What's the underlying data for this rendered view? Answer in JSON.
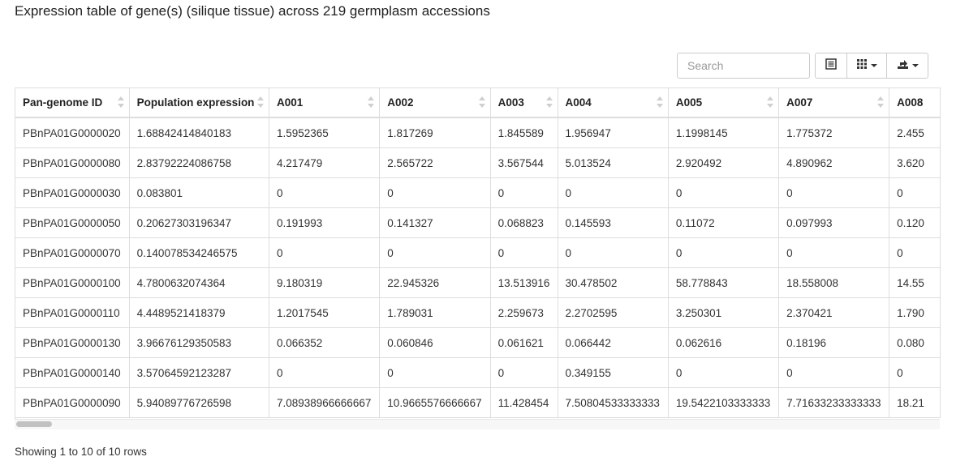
{
  "page": {
    "title": "Expression table of gene(s) (silique tissue) across 219 germplasm accessions"
  },
  "toolbar": {
    "search_placeholder": "Search",
    "search_value": "",
    "buttons": [
      {
        "icon": "list-view-icon"
      },
      {
        "icon": "columns-grid-icon",
        "dropdown": true
      },
      {
        "icon": "export-icon",
        "dropdown": true
      }
    ]
  },
  "table": {
    "columns": [
      "Pan-genome ID",
      "Population expression",
      "A001",
      "A002",
      "A003",
      "A004",
      "A005",
      "A007",
      "A008"
    ],
    "rows": [
      [
        "PBnPA01G0000020",
        "1.68842414840183",
        "1.5952365",
        "1.817269",
        "1.845589",
        "1.956947",
        "1.1998145",
        "1.775372",
        "2.455"
      ],
      [
        "PBnPA01G0000080",
        "2.83792224086758",
        "4.217479",
        "2.565722",
        "3.567544",
        "5.013524",
        "2.920492",
        "4.890962",
        "3.620"
      ],
      [
        "PBnPA01G0000030",
        "0.083801",
        "0",
        "0",
        "0",
        "0",
        "0",
        "0",
        "0"
      ],
      [
        "PBnPA01G0000050",
        "0.20627303196347",
        "0.191993",
        "0.141327",
        "0.068823",
        "0.145593",
        "0.11072",
        "0.097993",
        "0.120"
      ],
      [
        "PBnPA01G0000070",
        "0.140078534246575",
        "0",
        "0",
        "0",
        "0",
        "0",
        "0",
        "0"
      ],
      [
        "PBnPA01G0000100",
        "4.7800632074364",
        "9.180319",
        "22.945326",
        "13.513916",
        "30.478502",
        "58.778843",
        "18.558008",
        "14.55"
      ],
      [
        "PBnPA01G0000110",
        "4.4489521418379",
        "1.2017545",
        "1.789031",
        "2.259673",
        "2.2702595",
        "3.250301",
        "2.370421",
        "1.790"
      ],
      [
        "PBnPA01G0000130",
        "3.96676129350583",
        "0.066352",
        "0.060846",
        "0.061621",
        "0.066442",
        "0.062616",
        "0.18196",
        "0.080"
      ],
      [
        "PBnPA01G0000140",
        "3.57064592123287",
        "0",
        "0",
        "0",
        "0.349155",
        "0",
        "0",
        "0"
      ],
      [
        "PBnPA01G0000090",
        "5.94089776726598",
        "7.08938966666667",
        "10.9665576666667",
        "11.428454",
        "7.50804533333333",
        "19.5422103333333",
        "7.71633233333333",
        "18.21"
      ]
    ]
  },
  "footer": {
    "pagination_text": "Showing 1 to 10 of 10 rows"
  }
}
